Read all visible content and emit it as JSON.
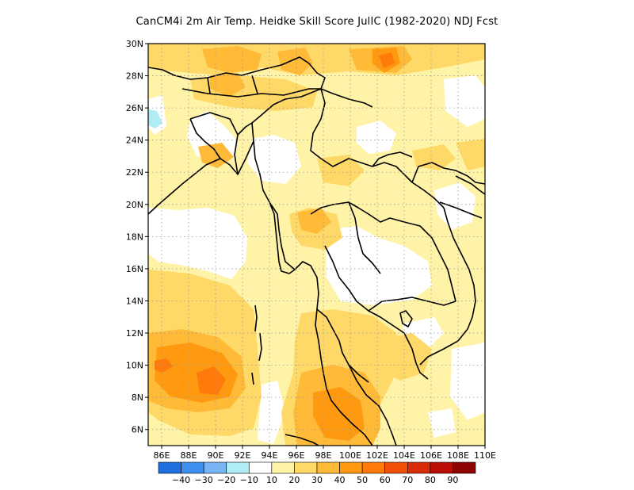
{
  "title": "CanCM4i  2m Air Temp. Heidke Skill Score JulIC (1982-2020) NDJ Fcst",
  "map": {
    "lon_range": [
      85,
      110
    ],
    "lat_range": [
      5,
      30
    ],
    "lon_ticks": [
      "86E",
      "88E",
      "90E",
      "92E",
      "94E",
      "96E",
      "98E",
      "100E",
      "102E",
      "104E",
      "106E",
      "108E",
      "110E"
    ],
    "lat_ticks": [
      "30N",
      "28N",
      "26N",
      "24N",
      "22N",
      "20N",
      "18N",
      "16N",
      "14N",
      "12N",
      "10N",
      "8N",
      "6N"
    ],
    "gridlines": "dotted"
  },
  "colorbar": {
    "colors": [
      "#1f6fe0",
      "#3f8ff0",
      "#78b4f2",
      "#b0ecf4",
      "#ffffff",
      "#fff3a8",
      "#ffd968",
      "#ffba38",
      "#ff9a10",
      "#ff7a0a",
      "#f25008",
      "#db2a08",
      "#bb0d05",
      "#8e0302"
    ],
    "labels": [
      "-40",
      "-30",
      "-20",
      "-10",
      "10",
      "20",
      "30",
      "40",
      "50",
      "60",
      "70",
      "80",
      "90"
    ]
  }
}
